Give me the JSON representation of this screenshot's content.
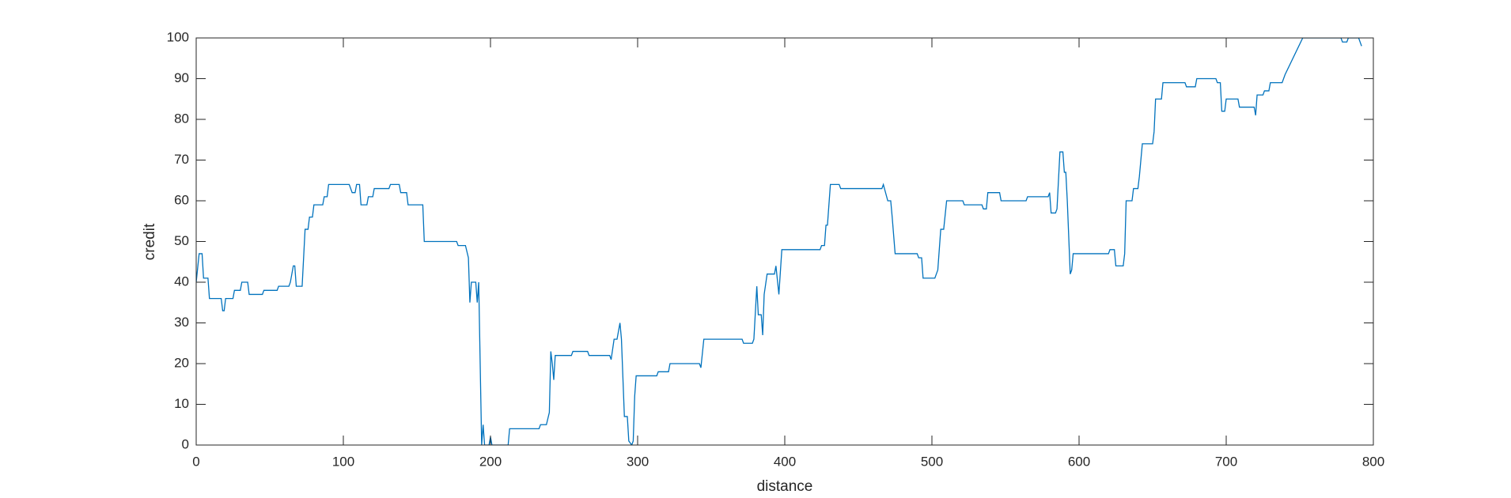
{
  "chart_data": {
    "type": "line",
    "xlabel": "distance",
    "ylabel": "credit",
    "x": [
      0,
      2,
      4,
      5,
      8,
      9,
      17,
      18,
      19,
      20,
      25,
      26,
      30,
      31,
      35,
      36,
      45,
      46,
      55,
      56,
      63,
      64,
      66,
      67,
      68,
      72,
      74,
      76,
      77,
      79,
      80,
      86,
      87,
      89,
      90,
      104,
      106,
      108,
      109,
      111,
      112,
      116,
      117,
      120,
      121,
      131,
      132,
      138,
      139,
      143,
      144,
      154,
      155,
      177,
      178,
      183,
      185,
      186,
      187,
      190,
      191,
      192,
      194,
      195,
      196,
      199,
      200,
      201,
      212,
      213,
      233,
      234,
      238,
      240,
      241,
      242,
      243,
      244,
      255,
      256,
      266,
      267,
      281,
      282,
      284,
      286,
      288,
      289,
      291,
      293,
      294,
      296,
      297,
      298,
      299,
      313,
      314,
      321,
      322,
      342,
      343,
      345,
      371,
      372,
      378,
      379,
      381,
      382,
      384,
      385,
      386,
      388,
      393,
      394,
      396,
      398,
      424,
      425,
      427,
      428,
      429,
      431,
      437,
      438,
      466,
      467,
      470,
      472,
      473,
      475,
      490,
      491,
      493,
      494,
      502,
      504,
      506,
      508,
      510,
      521,
      522,
      534,
      535,
      537,
      538,
      546,
      547,
      564,
      565,
      579,
      580,
      581,
      584,
      585,
      587,
      589,
      590,
      591,
      592,
      594,
      595,
      596,
      620,
      621,
      624,
      625,
      630,
      631,
      632,
      636,
      637,
      640,
      641,
      643,
      650,
      651,
      652,
      656,
      657,
      672,
      673,
      679,
      680,
      693,
      694,
      696,
      697,
      699,
      700,
      708,
      709,
      719,
      720,
      721,
      725,
      726,
      729,
      730,
      738,
      740,
      752,
      778,
      779,
      782,
      783,
      790,
      792
    ],
    "values": [
      40,
      47,
      47,
      41,
      41,
      36,
      36,
      33,
      33,
      36,
      36,
      38,
      38,
      40,
      40,
      37,
      37,
      38,
      38,
      39,
      39,
      40,
      44,
      44,
      39,
      39,
      53,
      53,
      56,
      56,
      59,
      59,
      61,
      61,
      64,
      64,
      62,
      62,
      64,
      64,
      59,
      59,
      61,
      61,
      63,
      63,
      64,
      64,
      62,
      62,
      59,
      59,
      50,
      50,
      49,
      49,
      46,
      35,
      40,
      40,
      35,
      40,
      0,
      5,
      0,
      0,
      2,
      0,
      0,
      4,
      4,
      5,
      5,
      8,
      23,
      20,
      16,
      22,
      22,
      23,
      23,
      22,
      22,
      21,
      26,
      26,
      30,
      26,
      7,
      7,
      1,
      0,
      1,
      12,
      17,
      17,
      18,
      18,
      20,
      20,
      19,
      26,
      26,
      25,
      25,
      26,
      39,
      32,
      32,
      27,
      37,
      42,
      42,
      44,
      37,
      48,
      48,
      49,
      49,
      54,
      54,
      64,
      64,
      63,
      63,
      64,
      60,
      60,
      56,
      47,
      47,
      46,
      46,
      41,
      41,
      43,
      53,
      53,
      60,
      60,
      59,
      59,
      58,
      58,
      62,
      62,
      60,
      60,
      61,
      61,
      62,
      57,
      57,
      58,
      72,
      72,
      67,
      67,
      60,
      42,
      43,
      47,
      47,
      48,
      48,
      44,
      44,
      47,
      60,
      60,
      63,
      63,
      66,
      74,
      74,
      77,
      85,
      85,
      89,
      89,
      88,
      88,
      90,
      90,
      89,
      89,
      82,
      82,
      85,
      85,
      83,
      83,
      81,
      86,
      86,
      87,
      87,
      89,
      89,
      91,
      100,
      100,
      99,
      99,
      100,
      100,
      98
    ],
    "color": "#0072bd",
    "xlim": [
      0,
      800
    ],
    "xticks": [
      0,
      100,
      200,
      300,
      400,
      500,
      600,
      700,
      800
    ],
    "ylim": [
      0,
      100
    ],
    "yticks": [
      0,
      10,
      20,
      30,
      40,
      50,
      60,
      70,
      80,
      90,
      100
    ]
  }
}
